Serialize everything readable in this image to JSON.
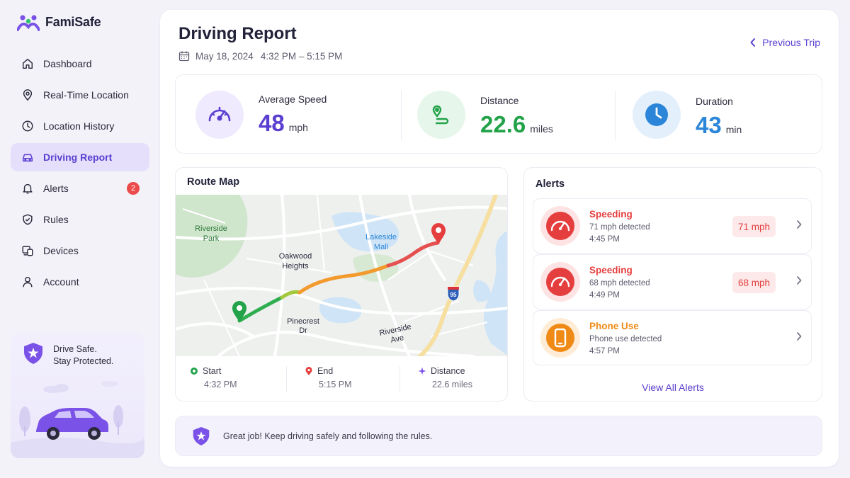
{
  "app": {
    "name": "FamiSafe"
  },
  "sidebar": {
    "items": [
      {
        "label": "Dashboard",
        "icon": "home-icon"
      },
      {
        "label": "Real-Time Location",
        "icon": "location-pin-icon"
      },
      {
        "label": "Location History",
        "icon": "clock-icon"
      },
      {
        "label": "Driving Report",
        "icon": "car-icon",
        "active": true
      },
      {
        "label": "Alerts",
        "icon": "bell-icon",
        "badge": "2"
      },
      {
        "label": "Rules",
        "icon": "shield-check-icon"
      },
      {
        "label": "Devices",
        "icon": "devices-icon"
      },
      {
        "label": "Account",
        "icon": "user-icon"
      }
    ],
    "promo": {
      "line1": "Drive Safe.",
      "line2": "Stay Protected."
    }
  },
  "header": {
    "title": "Driving Report",
    "date": "May 18, 2024",
    "time_range": "4:32 PM – 5:15 PM",
    "prev_trip": "Previous Trip"
  },
  "stats": [
    {
      "label": "Average Speed",
      "value": "48",
      "unit": "mph",
      "color": "#5b3fd0",
      "bg": "#efeafd",
      "icon": "speedometer-icon"
    },
    {
      "label": "Distance",
      "value": "22.6",
      "unit": "miles",
      "color": "#22a249",
      "bg": "#e6f6ea",
      "icon": "route-icon"
    },
    {
      "label": "Duration",
      "value": "43",
      "unit": "min",
      "color": "#2b86d9",
      "bg": "#e3f0fc",
      "icon": "clock-icon"
    }
  ],
  "route_map": {
    "title": "Route Map",
    "map_labels": {
      "park": "Riverside\nPark",
      "oakwood": "Oakwood\nHeights",
      "lakeside": "Lakeside\nMall",
      "pinecrest": "Pinecrest\nDr",
      "riverside_ave": "Riverside\nAve",
      "highway": "95"
    },
    "start": {
      "label": "Start",
      "value": "4:32 PM"
    },
    "end": {
      "label": "End",
      "value": "5:15 PM"
    },
    "distance": {
      "label": "Distance",
      "value": "22.6 miles"
    }
  },
  "alerts": {
    "title": "Alerts",
    "items": [
      {
        "title": "Speeding",
        "detail": "71 mph detected",
        "time": "4:45 PM",
        "pill": "71 mph",
        "color": "#e53e3e",
        "icon": "speedometer-icon"
      },
      {
        "title": "Speeding",
        "detail": "68 mph detected",
        "time": "4:49 PM",
        "pill": "68 mph",
        "color": "#e53e3e",
        "icon": "speedometer-icon"
      },
      {
        "title": "Phone Use",
        "detail": "Phone use detected",
        "time": "4:57 PM",
        "pill": "",
        "color": "#f08a16",
        "icon": "phone-icon"
      }
    ],
    "view_all": "View All Alerts"
  },
  "banner": {
    "text": "Great job! Keep driving safely and following the rules."
  }
}
